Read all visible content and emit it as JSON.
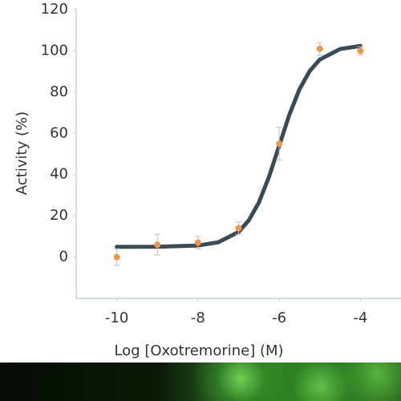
{
  "chart_data": {
    "type": "scatter",
    "x_label": "Log [Oxotremorine] (M)",
    "y_label": "Activity (%)",
    "xlim": [
      -11,
      -3
    ],
    "ylim": [
      -20,
      120
    ],
    "xticks": [
      -10,
      -8,
      -6,
      -4
    ],
    "yticks": [
      0,
      20,
      40,
      60,
      80,
      100,
      120
    ],
    "series": [
      {
        "color": "#f0954a",
        "x": [
          -10,
          -9,
          -8,
          -7,
          -6,
          -5,
          -4
        ],
        "values": [
          0,
          6,
          7,
          14,
          55,
          101,
          100
        ],
        "errors": [
          4,
          5,
          3,
          3,
          8,
          3,
          2
        ]
      }
    ],
    "fit": {
      "color": "#3b4b55",
      "x": [
        -10,
        -9,
        -8,
        -7.5,
        -7,
        -6.75,
        -6.5,
        -6.25,
        -6,
        -5.75,
        -5.5,
        -5.25,
        -5,
        -4.5,
        -4
      ],
      "values": [
        5.0,
        5.05,
        5.6,
        7.2,
        12.2,
        17.8,
        26.5,
        39.0,
        54,
        69.0,
        81.4,
        90.2,
        95.8,
        100.9,
        102.4
      ]
    }
  }
}
